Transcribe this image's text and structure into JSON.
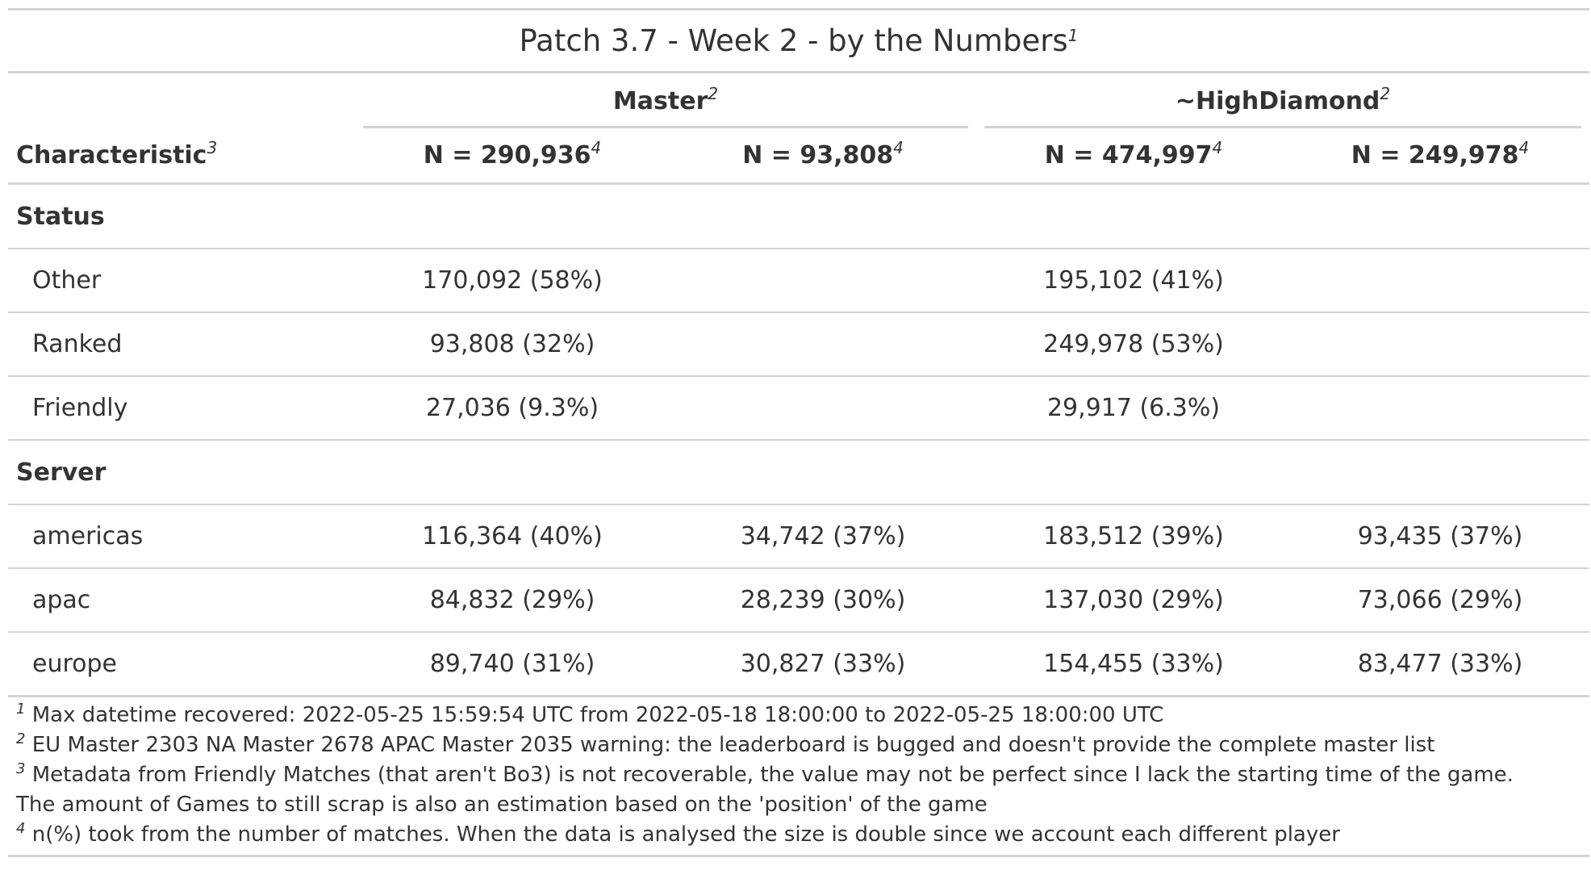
{
  "title": "Patch 3.7 - Week 2 - by the Numbers",
  "title_mark": "1",
  "spanners": [
    {
      "label": "Master",
      "mark": "2"
    },
    {
      "label": "~HighDiamond",
      "mark": "2"
    }
  ],
  "columns": {
    "characteristic": {
      "label": "Characteristic",
      "mark": "3"
    },
    "n": [
      {
        "label": "N = 290,936",
        "mark": "4"
      },
      {
        "label": "N = 93,808",
        "mark": "4"
      },
      {
        "label": "N = 474,997",
        "mark": "4"
      },
      {
        "label": "N = 249,978",
        "mark": "4"
      }
    ]
  },
  "groups": [
    {
      "label": "Status",
      "rows": [
        {
          "label": "Other",
          "values": [
            "170,092 (58%)",
            "",
            "195,102 (41%)",
            ""
          ]
        },
        {
          "label": "Ranked",
          "values": [
            "93,808 (32%)",
            "",
            "249,978 (53%)",
            ""
          ]
        },
        {
          "label": "Friendly",
          "values": [
            "27,036 (9.3%)",
            "",
            "29,917 (6.3%)",
            ""
          ]
        }
      ]
    },
    {
      "label": "Server",
      "rows": [
        {
          "label": "americas",
          "values": [
            "116,364 (40%)",
            "34,742 (37%)",
            "183,512 (39%)",
            "93,435 (37%)"
          ]
        },
        {
          "label": "apac",
          "values": [
            "84,832 (29%)",
            "28,239 (30%)",
            "137,030 (29%)",
            "73,066 (29%)"
          ]
        },
        {
          "label": "europe",
          "values": [
            "89,740 (31%)",
            "30,827 (33%)",
            "154,455 (33%)",
            "83,477 (33%)"
          ]
        }
      ]
    }
  ],
  "footnotes": [
    {
      "mark": "1",
      "text": "Max datetime recovered: 2022-05-25 15:59:54 UTC from 2022-05-18 18:00:00 to 2022-05-25 18:00:00 UTC"
    },
    {
      "mark": "2",
      "text": "EU Master 2303 NA Master 2678 APAC Master 2035 warning: the leaderboard is bugged and doesn't provide the complete master list"
    },
    {
      "mark": "3",
      "text": "Metadata from Friendly Matches (that aren't Bo3) is not recoverable, the value may not be perfect since I lack the starting time of the game. The amount of Games to still scrap is also an estimation based on the 'position' of the game"
    },
    {
      "mark": "4",
      "text": "n(%) took from the number of matches. When the data is analysed the size is double since we account each different player"
    }
  ]
}
